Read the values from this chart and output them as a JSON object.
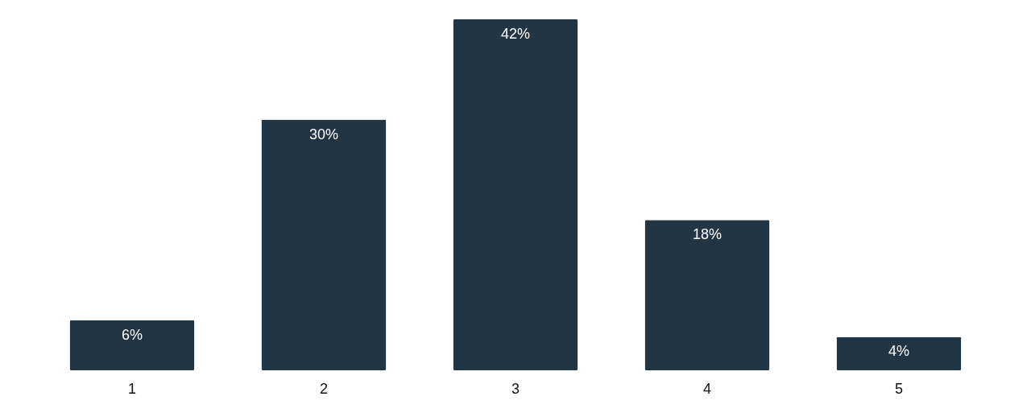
{
  "chart_data": {
    "type": "bar",
    "categories": [
      "1",
      "2",
      "3",
      "4",
      "5"
    ],
    "values": [
      6,
      30,
      42,
      18,
      4
    ],
    "value_labels": [
      "6%",
      "30%",
      "42%",
      "18%",
      "4%"
    ],
    "color": "#223544",
    "grid": false
  }
}
